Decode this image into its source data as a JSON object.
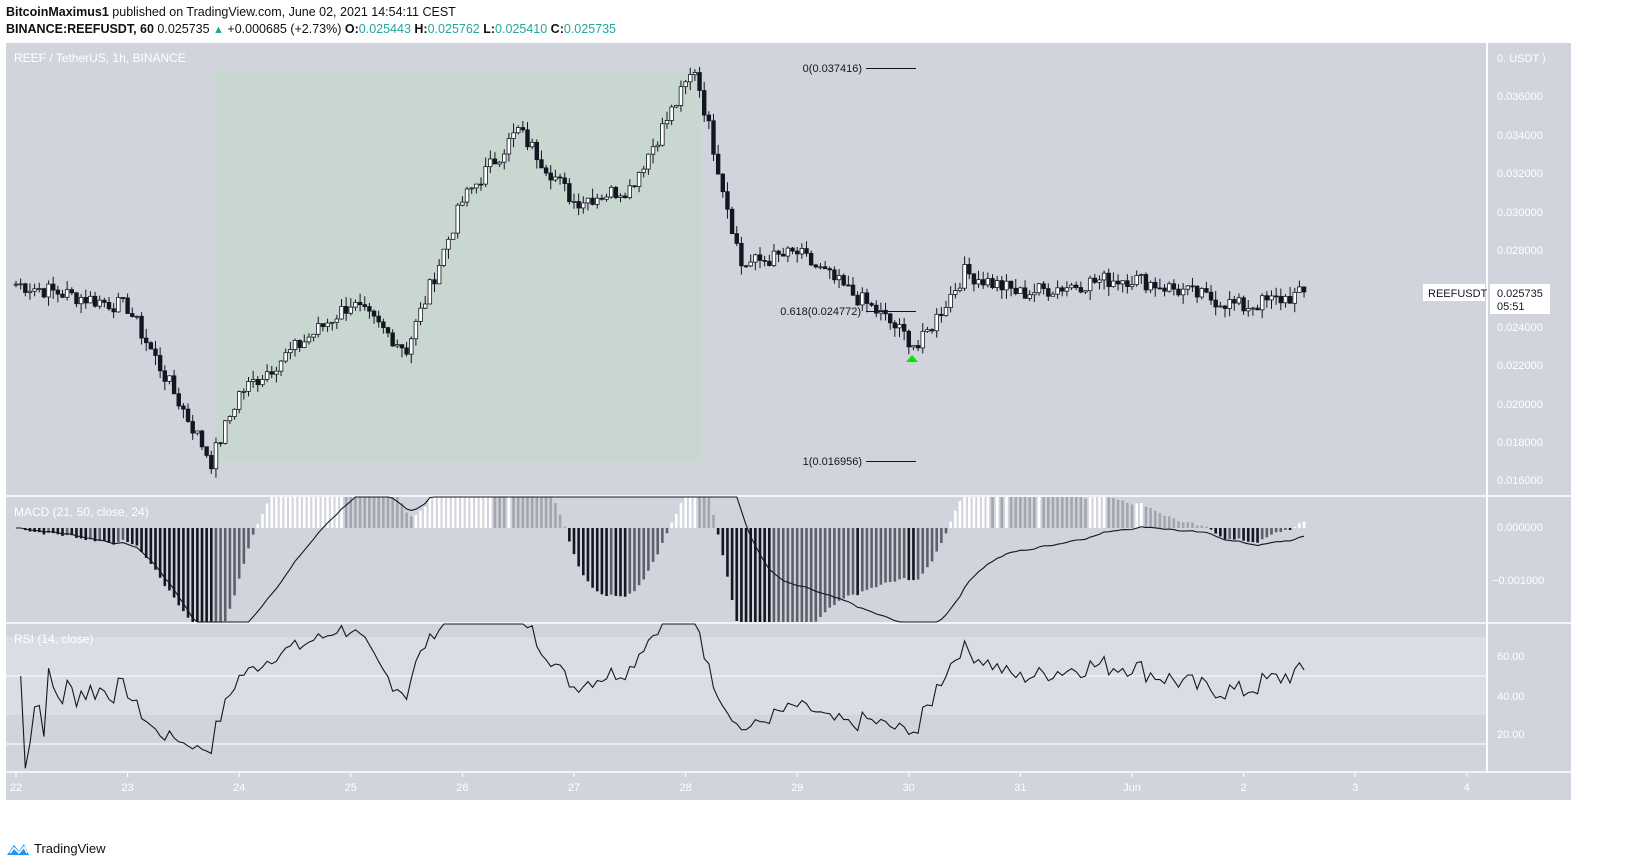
{
  "header": {
    "author": "BitcoinMaximus1",
    "published_text": "published on TradingView.com, June 02, 2021 14:54:11 CEST",
    "symbol": "BINANCE:REEFUSDT, 60",
    "last_price": "0.025735",
    "change_arrow": "▲",
    "change": "+0.000685 (+2.73%)",
    "open_label": "O:",
    "open": "0.025443",
    "high_label": "H:",
    "high": "0.025762",
    "low_label": "L:",
    "low": "0.025410",
    "close_label": "C:",
    "close": "0.025735"
  },
  "main_pane": {
    "title": "REEF / TetherUS, 1h, BINANCE",
    "axis_unit": "0. USDT ⟩",
    "price_ticks": [
      "0.036000",
      "0.034000",
      "0.032000",
      "0.030000",
      "0.028000",
      "0.024000",
      "0.022000",
      "0.020000",
      "0.018000",
      "0.016000"
    ],
    "price_label": {
      "symbol": "REEFUSDT",
      "price": "0.025735",
      "countdown": "05:51"
    },
    "fib_levels": [
      {
        "label": "0(0.037416)",
        "value": 0.037416
      },
      {
        "label": "0.618(0.024772)",
        "value": 0.024772
      },
      {
        "label": "1(0.016956)",
        "value": 0.016956
      }
    ],
    "highlight_box_color": "#c8d7cf",
    "buy_marker_color": "#00e600"
  },
  "macd_pane": {
    "title": "MACD (21, 50, close, 24)",
    "ticks": [
      "0.000000",
      "−0.001000"
    ]
  },
  "rsi_pane": {
    "title": "RSI (14, close)",
    "ticks": [
      "60.00",
      "40.00",
      "20.00"
    ]
  },
  "time_axis": {
    "labels": [
      "22",
      "23",
      "24",
      "25",
      "26",
      "27",
      "28",
      "29",
      "30",
      "31",
      "Jun",
      "2",
      "3",
      "4"
    ]
  },
  "footer": {
    "brand": "TradingView"
  },
  "colors": {
    "pane_bg": "#d1d4dc",
    "grid_line": "#ffffff",
    "axis_text": "#ffffff",
    "candle_up_body": "#ffffff",
    "candle_down_body": "#131722",
    "accent_teal": "#26a69a"
  },
  "chart_data": {
    "type": "candlestick",
    "title": "REEF / TetherUS, 1h, BINANCE",
    "x_range": [
      "May 22 2021",
      "Jun 4 2021"
    ],
    "y_range": [
      0.0155,
      0.0385
    ],
    "closes_approx": [
      {
        "date": "May 22",
        "price": 0.0262
      },
      {
        "date": "May 23",
        "price": 0.025
      },
      {
        "date": "May 23 18:00",
        "price": 0.01696
      },
      {
        "date": "May 24",
        "price": 0.0205
      },
      {
        "date": "May 25",
        "price": 0.0252
      },
      {
        "date": "May 25 12:00",
        "price": 0.0228
      },
      {
        "date": "May 26",
        "price": 0.0305
      },
      {
        "date": "May 26 12:00",
        "price": 0.0342
      },
      {
        "date": "May 27",
        "price": 0.0305
      },
      {
        "date": "May 27 12:00",
        "price": 0.0312
      },
      {
        "date": "May 28 02:00",
        "price": 0.037416
      },
      {
        "date": "May 28 12:00",
        "price": 0.0272
      },
      {
        "date": "May 29",
        "price": 0.0278
      },
      {
        "date": "May 29 18:00",
        "price": 0.0246
      },
      {
        "date": "May 30 02:00",
        "price": 0.0229
      },
      {
        "date": "May 30 12:00",
        "price": 0.0268
      },
      {
        "date": "May 31",
        "price": 0.0257
      },
      {
        "date": "May 31 18:00",
        "price": 0.0264
      },
      {
        "date": "Jun 1",
        "price": 0.0265
      },
      {
        "date": "Jun 2",
        "price": 0.025
      },
      {
        "date": "Jun 2 14:00",
        "price": 0.025735
      }
    ],
    "fibonacci": {
      "0": 0.037416,
      "0.618": 0.024772,
      "1": 0.016956
    },
    "indicators": {
      "macd": {
        "params": [
          21,
          50,
          "close",
          24
        ],
        "range": [
          -0.0018,
          0.0006
        ]
      },
      "rsi": {
        "params": [
          14,
          "close"
        ],
        "bands": [
          30,
          70
        ],
        "range": [
          10,
          80
        ]
      }
    }
  }
}
